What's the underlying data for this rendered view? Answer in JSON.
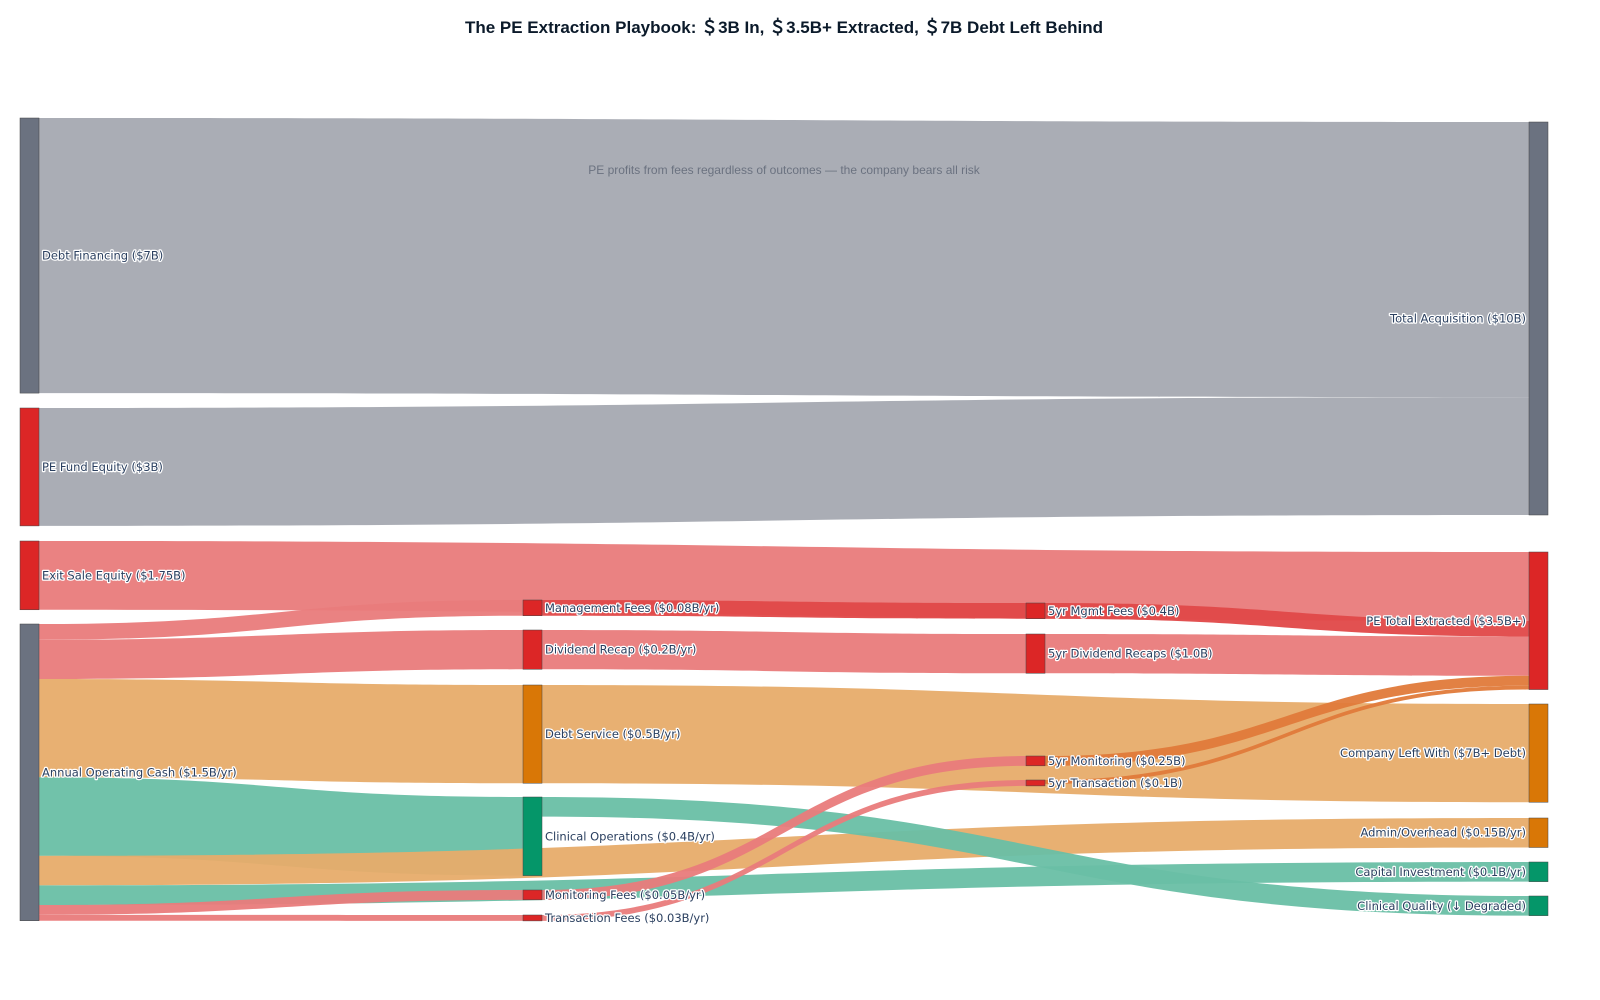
{
  "chart_data": {
    "type": "sankey",
    "title": "The PE Extraction Playbook: ＄3B In, ＄3.5B+ Extracted, ＄7B Debt Left Behind",
    "annotation": "PE profits from fees regardless of outcomes — the company bears all risk",
    "colors": {
      "gray": "#6b7280",
      "red": "#dc2626",
      "orange": "#d97706",
      "green": "#059669"
    },
    "nodes": [
      {
        "label": "Debt Financing ($7B)",
        "color": "#6b7280"
      },
      {
        "label": "PE Fund Equity ($3B)",
        "color": "#dc2626"
      },
      {
        "label": "Exit Sale Equity ($1.75B)",
        "color": "#dc2626"
      },
      {
        "label": "Annual Operating Cash ($1.5B/yr)",
        "color": "#6b7280"
      },
      {
        "label": "Management Fees ($0.08B/yr)",
        "color": "#dc2626"
      },
      {
        "label": "Dividend Recap ($0.2B/yr)",
        "color": "#dc2626"
      },
      {
        "label": "Debt Service ($0.5B/yr)",
        "color": "#d97706"
      },
      {
        "label": "Clinical Operations ($0.4B/yr)",
        "color": "#059669"
      },
      {
        "label": "Monitoring Fees ($0.05B/yr)",
        "color": "#dc2626"
      },
      {
        "label": "Transaction Fees ($0.03B/yr)",
        "color": "#dc2626"
      },
      {
        "label": "5yr Mgmt Fees ($0.4B)",
        "color": "#dc2626"
      },
      {
        "label": "5yr Dividend Recaps ($1.0B)",
        "color": "#dc2626"
      },
      {
        "label": "5yr Monitoring ($0.25B)",
        "color": "#dc2626"
      },
      {
        "label": "5yr Transaction ($0.1B)",
        "color": "#dc2626"
      },
      {
        "label": "Total Acquisition ($10B)",
        "color": "#6b7280"
      },
      {
        "label": "PE Total Extracted ($3.5B+)",
        "color": "#dc2626"
      },
      {
        "label": "Company Left With ($7B+ Debt)",
        "color": "#d97706"
      },
      {
        "label": "Admin/Overhead ($0.15B/yr)",
        "color": "#d97706"
      },
      {
        "label": "Capital Investment ($0.1B/yr)",
        "color": "#059669"
      },
      {
        "label": "Clinical Quality (↓ Degraded)",
        "color": "#059669"
      }
    ],
    "links": [
      {
        "source": 0,
        "target": 14,
        "value": 7,
        "color": "#a5a9b1"
      },
      {
        "source": 1,
        "target": 14,
        "value": 3,
        "color": "#a5a9b1"
      },
      {
        "source": 2,
        "target": 15,
        "value": 1.75,
        "color": "#e97b7b"
      },
      {
        "source": 3,
        "target": 4,
        "value": 0.4,
        "color": "#e97b7b"
      },
      {
        "source": 3,
        "target": 5,
        "value": 1.0,
        "color": "#e97b7b"
      },
      {
        "source": 3,
        "target": 6,
        "value": 2.5,
        "color": "#e7ac6a"
      },
      {
        "source": 3,
        "target": 7,
        "value": 2.0,
        "color": "#69bfa5"
      },
      {
        "source": 3,
        "target": 17,
        "value": 0.75,
        "color": "#e7ac6a"
      },
      {
        "source": 3,
        "target": 18,
        "value": 0.5,
        "color": "#69bfa5"
      },
      {
        "source": 3,
        "target": 8,
        "value": 0.25,
        "color": "#e97b7b"
      },
      {
        "source": 3,
        "target": 9,
        "value": 0.15,
        "color": "#e97b7b"
      },
      {
        "source": 4,
        "target": 10,
        "value": 0.4,
        "color": "#e04848"
      },
      {
        "source": 5,
        "target": 11,
        "value": 1.0,
        "color": "#e97b7b"
      },
      {
        "source": 6,
        "target": 16,
        "value": 2.5,
        "color": "#e7ac6a"
      },
      {
        "source": 7,
        "target": 19,
        "value": 0.5,
        "color": "#69bfa5"
      },
      {
        "source": 8,
        "target": 12,
        "value": 0.25,
        "color": "#e97b7b"
      },
      {
        "source": 9,
        "target": 13,
        "value": 0.15,
        "color": "#e97b7b"
      },
      {
        "source": 10,
        "target": 15,
        "value": 0.4,
        "color": "#e04848"
      },
      {
        "source": 11,
        "target": 15,
        "value": 1.0,
        "color": "#e97b7b"
      },
      {
        "source": 12,
        "target": 15,
        "value": 0.25,
        "color": "#e07a3a"
      },
      {
        "source": 13,
        "target": 15,
        "value": 0.1,
        "color": "#e07a3a"
      }
    ]
  }
}
